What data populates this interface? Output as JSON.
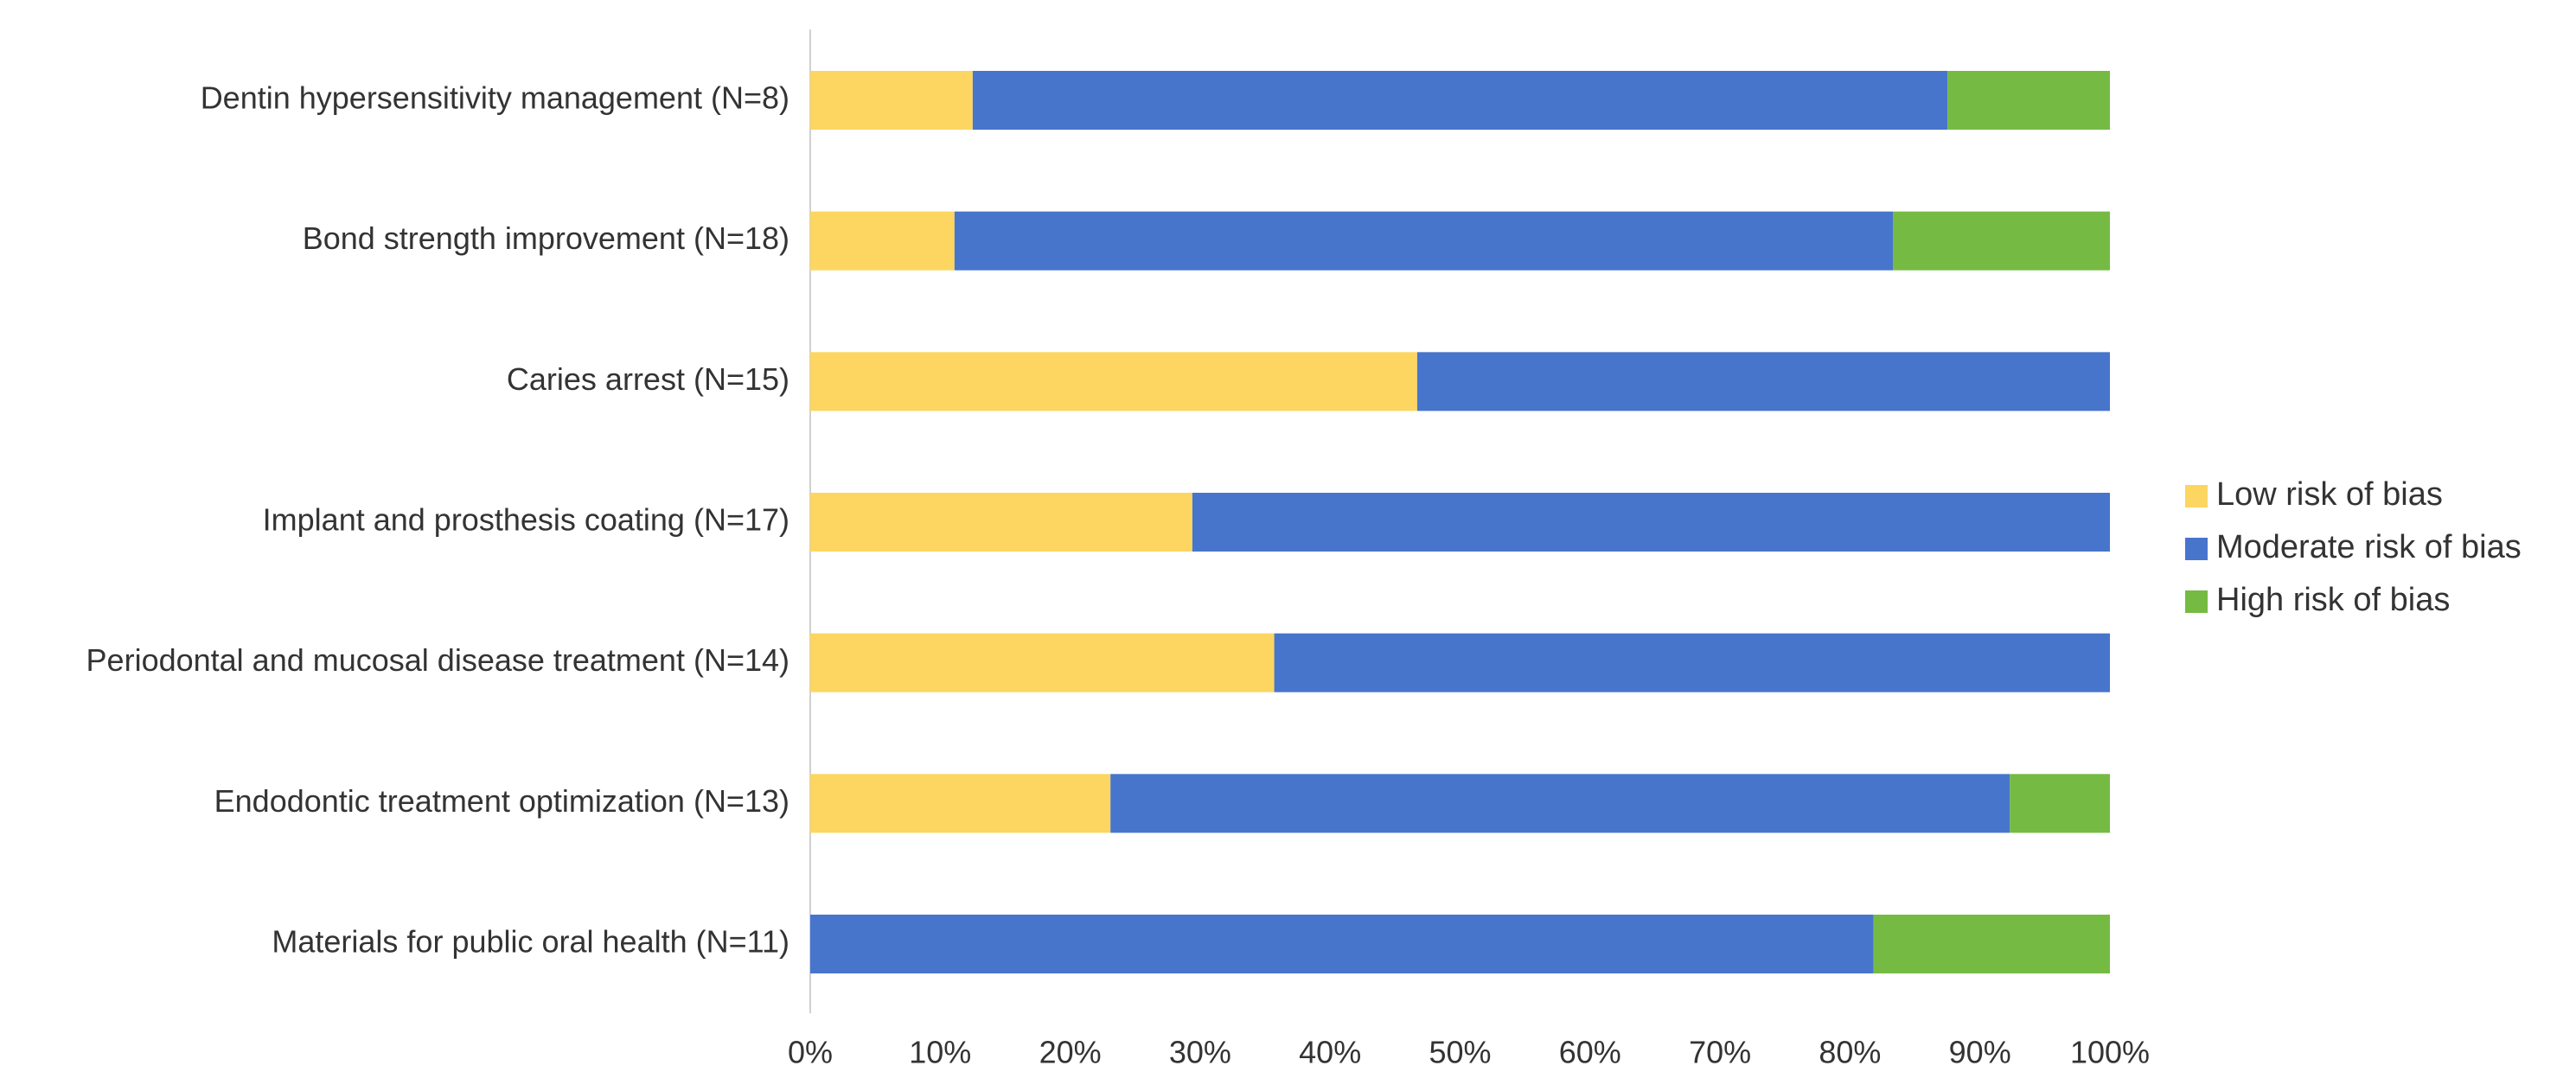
{
  "chart_data": {
    "type": "stacked-bar-horizontal",
    "categories": [
      "Dentin hypersensitivity management (N=8)",
      "Bond strength improvement (N=18)",
      "Caries arrest (N=15)",
      "Implant and prosthesis coating (N=17)",
      "Periodontal and mucosal disease treatment (N=14)",
      "Endodontic treatment optimization (N=13)",
      "Materials for public oral health (N=11)"
    ],
    "series": [
      {
        "name": "Low risk of bias",
        "color": "#fcd661",
        "values": [
          12.5,
          11.1,
          46.7,
          29.4,
          35.7,
          23.1,
          0
        ]
      },
      {
        "name": "Moderate risk of bias",
        "color": "#4775cc",
        "values": [
          75.0,
          72.2,
          53.3,
          70.6,
          64.3,
          69.2,
          81.8
        ]
      },
      {
        "name": "High risk of bias",
        "color": "#75bb43",
        "values": [
          12.5,
          16.7,
          0,
          0,
          0,
          7.7,
          18.2
        ]
      }
    ],
    "xlim": [
      0,
      100
    ],
    "xticks": [
      {
        "value": 0,
        "label": "0%"
      },
      {
        "value": 10,
        "label": "10%"
      },
      {
        "value": 20,
        "label": "20%"
      },
      {
        "value": 30,
        "label": "30%"
      },
      {
        "value": 40,
        "label": "40%"
      },
      {
        "value": 50,
        "label": "50%"
      },
      {
        "value": 60,
        "label": "60%"
      },
      {
        "value": 70,
        "label": "70%"
      },
      {
        "value": 80,
        "label": "80%"
      },
      {
        "value": 90,
        "label": "90%"
      },
      {
        "value": 100,
        "label": "100%"
      }
    ],
    "legend": "right"
  }
}
